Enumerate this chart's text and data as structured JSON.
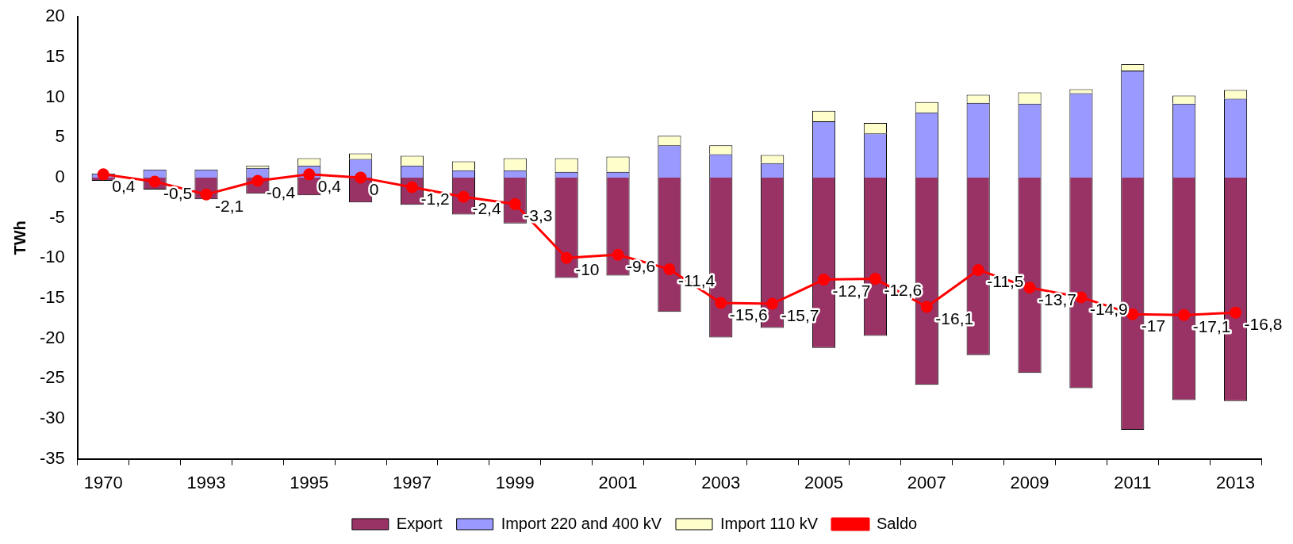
{
  "chart_data": {
    "type": "bar",
    "stacked": true,
    "ylabel": "TWh",
    "ylim": [
      -35,
      20
    ],
    "yticks": [
      -35,
      -30,
      -25,
      -20,
      -15,
      -10,
      -5,
      0,
      5,
      10,
      15,
      20
    ],
    "grid": false,
    "legend": "bottom",
    "categories": [
      "1970",
      null,
      "1993",
      null,
      "1995",
      null,
      "1997",
      null,
      "1999",
      null,
      "2001",
      null,
      "2003",
      null,
      "2005",
      null,
      "2007",
      null,
      "2009",
      null,
      "2011",
      null,
      "2013"
    ],
    "series": [
      {
        "name": "Export",
        "color": "#993366",
        "values": [
          -0.4,
          -1.5,
          -2.7,
          -2.0,
          -2.2,
          -3.1,
          -3.4,
          -4.6,
          -5.7,
          -12.5,
          -12.2,
          -16.7,
          -19.9,
          -18.7,
          -21.2,
          -19.7,
          -25.8,
          -22.1,
          -24.3,
          -26.2,
          -31.4,
          -27.7,
          -27.8
        ]
      },
      {
        "name": "Import 220 and 400 kV",
        "color": "#9999ff",
        "values": [
          0.5,
          1.0,
          1.0,
          1.2,
          1.5,
          2.3,
          1.5,
          0.9,
          0.9,
          0.7,
          0.7,
          4.0,
          2.9,
          1.8,
          7.0,
          5.5,
          8.1,
          9.3,
          9.2,
          10.5,
          13.3,
          9.2,
          9.8
        ]
      },
      {
        "name": "Import 110 kV",
        "color": "#ffffcc",
        "values": [
          0,
          0,
          0,
          0.3,
          0.9,
          0.7,
          1.2,
          1.1,
          1.5,
          1.7,
          1.9,
          1.2,
          1.1,
          1.0,
          1.3,
          1.3,
          1.3,
          1.0,
          1.4,
          0.5,
          0.8,
          1.0,
          1.1
        ]
      },
      {
        "name": "Saldo",
        "type": "line",
        "color": "#ff0000",
        "marker": "circle",
        "values": [
          0.4,
          -0.5,
          -2.1,
          -0.4,
          0.4,
          0,
          -1.2,
          -2.4,
          -3.3,
          -10,
          -9.6,
          -11.4,
          -15.6,
          -15.7,
          -12.7,
          -12.6,
          -16.1,
          -11.5,
          -13.7,
          -14.9,
          -17,
          -17.1,
          -16.8
        ],
        "value_labels": [
          "0,4",
          "-0,5",
          "-2,1",
          "-0,4",
          "0,4",
          "0",
          "-1,2",
          "-2,4",
          "-3,3",
          "-10",
          "-9,6",
          "-11,4",
          "-15,6",
          "-15,7",
          "-12,7",
          "-12,6",
          "-16,1",
          "-11,5",
          "-13,7",
          "-14,9",
          "-17",
          "-17,1",
          "-16,8"
        ]
      }
    ]
  }
}
